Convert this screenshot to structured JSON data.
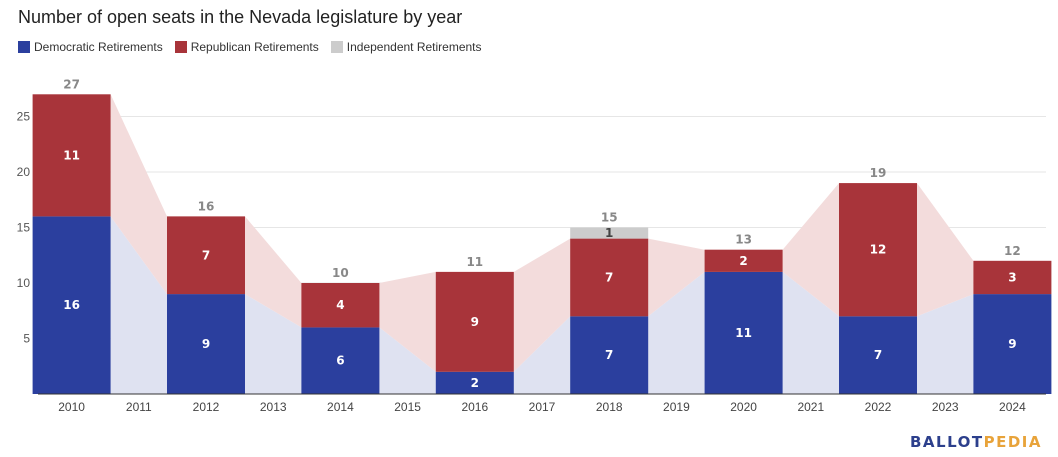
{
  "title": "Number of open seats in the Nevada legislature by year",
  "logo": {
    "part1": "BALLOT",
    "part2": "PEDIA"
  },
  "colors": {
    "democratic": "#2b3f9e",
    "republican": "#a8343a",
    "independent": "#cccccc",
    "dem_area": "#dfe2f1",
    "rep_area": "#f3dcdc"
  },
  "chart_data": {
    "type": "bar",
    "stacked": true,
    "title": "Number of open seats in the Nevada legislature by year",
    "categories": [
      "2010",
      "2011",
      "2012",
      "2013",
      "2014",
      "2015",
      "2016",
      "2017",
      "2018",
      "2019",
      "2020",
      "2021",
      "2022",
      "2023",
      "2024"
    ],
    "series": [
      {
        "name": "Democratic Retirements",
        "values": [
          16,
          null,
          9,
          null,
          6,
          null,
          2,
          null,
          7,
          null,
          11,
          null,
          7,
          null,
          9
        ]
      },
      {
        "name": "Republican Retirements",
        "values": [
          11,
          null,
          7,
          null,
          4,
          null,
          9,
          null,
          7,
          null,
          2,
          null,
          12,
          null,
          3
        ]
      },
      {
        "name": "Independent Retirements",
        "values": [
          0,
          null,
          0,
          null,
          0,
          null,
          0,
          null,
          1,
          null,
          0,
          null,
          0,
          null,
          0
        ]
      }
    ],
    "totals": [
      27,
      null,
      16,
      null,
      10,
      null,
      11,
      null,
      15,
      null,
      13,
      null,
      19,
      null,
      12
    ],
    "ylim": [
      0,
      30
    ],
    "yticks": [
      5,
      10,
      15,
      20,
      25
    ],
    "grid": true,
    "legend_position": "top-left"
  }
}
